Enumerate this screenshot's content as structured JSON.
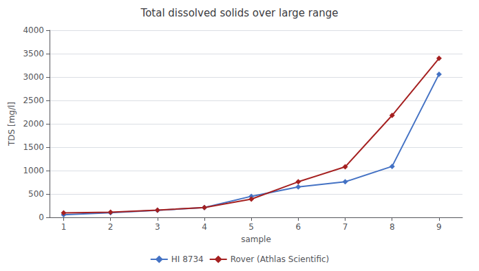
{
  "chart_data": {
    "type": "line",
    "title": "Total dissolved solids over large range",
    "xlabel": "sample",
    "ylabel": "TDS [mg/l]",
    "x": [
      1,
      2,
      3,
      4,
      5,
      6,
      7,
      8,
      9
    ],
    "series": [
      {
        "name": "HI 8734",
        "color": "#4472C4",
        "marker": "diamond",
        "values": [
          55,
          100,
          150,
          210,
          450,
          650,
          760,
          1090,
          3060
        ]
      },
      {
        "name": "Rover (Athlas Scientific)",
        "color": "#A52020",
        "marker": "diamond",
        "values": [
          95,
          110,
          155,
          210,
          390,
          760,
          1080,
          2180,
          3400
        ]
      }
    ],
    "xlim": [
      0.7,
      9.5
    ],
    "xticks": [
      1,
      2,
      3,
      4,
      5,
      6,
      7,
      8,
      9
    ],
    "ylim": [
      0,
      4000
    ],
    "yticks": [
      0,
      500,
      1000,
      1500,
      2000,
      2500,
      3000,
      3500,
      4000
    ],
    "grid": true,
    "legend": "bottom"
  }
}
